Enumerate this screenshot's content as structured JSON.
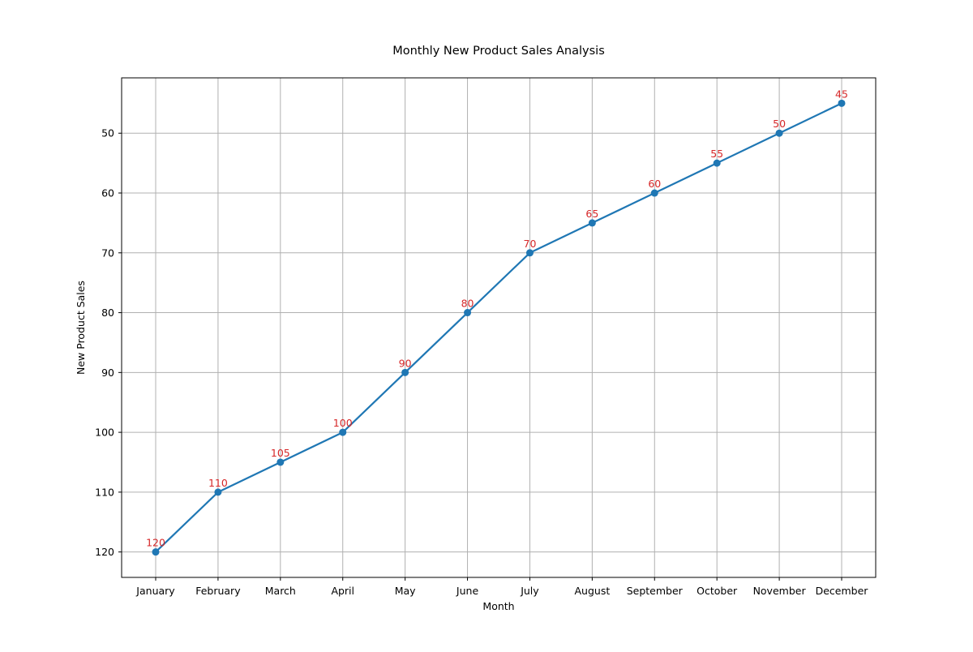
{
  "chart_data": {
    "type": "line",
    "title": "Monthly New Product Sales Analysis",
    "xlabel": "Month",
    "ylabel": "New Product Sales",
    "categories": [
      "January",
      "February",
      "March",
      "April",
      "May",
      "June",
      "July",
      "August",
      "September",
      "October",
      "November",
      "December"
    ],
    "series": [
      {
        "values": [
          120,
          110,
          105,
          100,
          90,
          80,
          70,
          65,
          60,
          55,
          50,
          45
        ],
        "color": "#1f77b4",
        "marker": "circle"
      }
    ],
    "data_labels": [
      "120",
      "110",
      "105",
      "100",
      "90",
      "80",
      "70",
      "65",
      "60",
      "55",
      "50",
      "45"
    ],
    "data_label_color": "#d62728",
    "y_inverted": true,
    "ylim": [
      124.25,
      40.75
    ],
    "yticks": [
      50,
      60,
      70,
      80,
      90,
      100,
      110,
      120
    ],
    "ytick_labels": [
      "50",
      "60",
      "70",
      "80",
      "90",
      "100",
      "110",
      "120"
    ],
    "grid": true,
    "legend": "none"
  }
}
